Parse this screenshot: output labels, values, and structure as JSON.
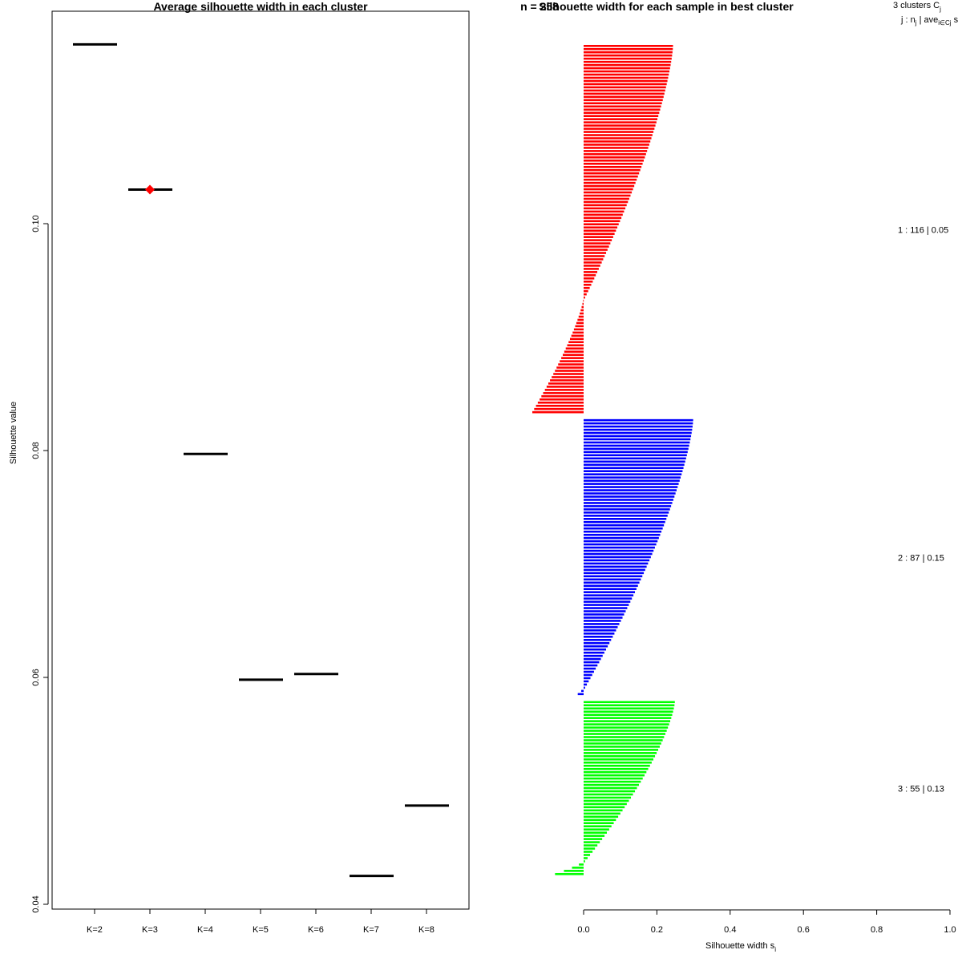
{
  "chart_data": [
    {
      "type": "scatter",
      "title": "Average silhouette width in each cluster",
      "xlabel": "",
      "ylabel": "Silhouette value",
      "categories": [
        "K=2",
        "K=3",
        "K=4",
        "K=5",
        "K=6",
        "K=7",
        "K=8"
      ],
      "values": [
        0.1158,
        0.103,
        0.0797,
        0.0598,
        0.0603,
        0.0425,
        0.0487
      ],
      "best_index": 1,
      "best_color": "#ff0000",
      "ylim": [
        0.04,
        0.119
      ],
      "yticks": [
        "0.04",
        "0.06",
        "0.08",
        "0.10"
      ],
      "ytick_values": [
        0.04,
        0.06,
        0.08,
        0.1
      ]
    },
    {
      "type": "bar",
      "orientation": "horizontal",
      "title": "Silhouette width for each sample in best cluster",
      "overlap_title": "n = 258",
      "xlabel": "Silhouette width s",
      "xlabel_sub": "i",
      "xlim": [
        0,
        1
      ],
      "xticks": [
        "0.0",
        "0.2",
        "0.4",
        "0.6",
        "0.8",
        "1.0"
      ],
      "xtick_values": [
        0,
        0.2,
        0.4,
        0.6,
        0.8,
        1.0
      ],
      "header_line1_main": "3  clusters  C",
      "header_line1_sub": "j",
      "header_line2": "j :  n",
      "header_line2_sub1": "j",
      "header_line2_mid": " | ave",
      "header_line2_sub2": "i∈Cj",
      "header_line2_end": "  s",
      "series": [
        {
          "name": "1 :  116  |  0.05",
          "color": "#ff0000",
          "n": 116,
          "max_positive": 0.24,
          "positive_count": 80,
          "min_negative": -0.14,
          "negative_count": 36
        },
        {
          "name": "2 :  87  |  0.15",
          "color": "#0000ff",
          "n": 87,
          "max_positive": 0.295,
          "positive_count": 85,
          "min_negative": -0.016,
          "negative_count": 2
        },
        {
          "name": "3 :  55  |  0.13",
          "color": "#00ff00",
          "n": 55,
          "max_positive": 0.245,
          "positive_count": 51,
          "min_negative": -0.078,
          "negative_count": 4
        }
      ]
    }
  ]
}
